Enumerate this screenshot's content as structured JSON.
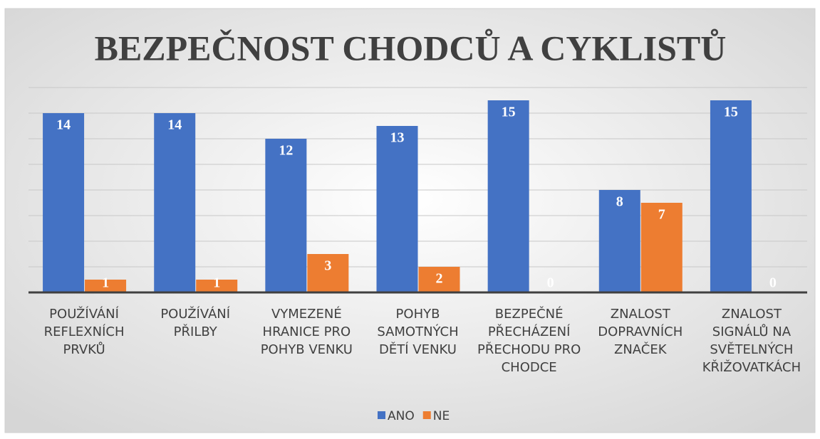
{
  "chart_data": {
    "type": "bar",
    "title": "BEZPEČNOST CHODCŮ A CYKLISTŮ",
    "categories": [
      "POUŽÍVÁNÍ REFLEXNÍCH PRVKŮ",
      "POUŽÍVÁNÍ PŘILBY",
      "VYMEZENÉ HRANICE PRO POHYB VENKU",
      "POHYB SAMOTNÝCH DĚTÍ VENKU",
      "BEZPEČNÉ PŘECHÁZENÍ PŘECHODU PRO CHODCE",
      "ZNALOST DOPRAVNÍCH ZNAČEK",
      "ZNALOST SIGNÁLŮ NA SVĚTELNÝCH KŘIŽOVATKÁCH"
    ],
    "series": [
      {
        "name": "ANO",
        "color": "#4472c4",
        "values": [
          14,
          14,
          12,
          13,
          15,
          8,
          15
        ]
      },
      {
        "name": "NE",
        "color": "#ed7d31",
        "values": [
          1,
          1,
          3,
          2,
          0,
          7,
          0
        ]
      }
    ],
    "ylim": [
      0,
      16
    ],
    "yticks": [
      0,
      2,
      4,
      6,
      8,
      10,
      12,
      14,
      16
    ],
    "grid": true,
    "legend": "bottom"
  }
}
